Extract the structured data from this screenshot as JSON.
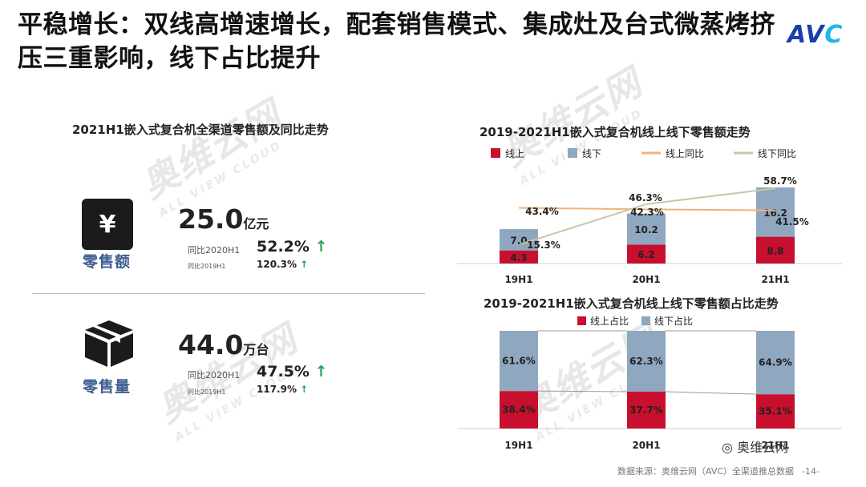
{
  "title": "平稳增长：双线高增速增长，配套销售模式、集成灶及台式微蒸烤挤压三重影响，线下占比提升",
  "brand_logo": "AVC",
  "watermark": {
    "text": "奥维云网",
    "sub": "ALL VIEW CLOUD"
  },
  "left_panel": {
    "title": "2021H1嵌入式复合机全渠道零售额及同比走势",
    "retail_amount": {
      "icon": "yen-bag-icon",
      "icon_glyph": "¥",
      "label": "零售额",
      "value": "25.0",
      "unit": "亿元",
      "yoy_2020_label": "同比2020H1",
      "yoy_2020_value": "52.2%",
      "yoy_2019_label": "同比2019H1",
      "yoy_2019_value": "120.3%"
    },
    "retail_volume": {
      "icon": "box-icon",
      "label": "零售量",
      "value": "44.0",
      "unit": "万台",
      "yoy_2020_label": "同比2020H1",
      "yoy_2020_value": "47.5%",
      "yoy_2019_label": "同比2019H1",
      "yoy_2019_value": "117.9%"
    },
    "up_arrow": "↑"
  },
  "footer": {
    "source": "数据来源：奥维云网（AVC）全渠道推总数据",
    "page": "-14-"
  },
  "wechat_tag": "奥维云网",
  "colors": {
    "online": "#c8102e",
    "offline": "#8fa7bf",
    "online_yoy": "#f2b27a",
    "offline_yoy": "#c9c6a6",
    "up": "#29a35a"
  },
  "chart_data": [
    {
      "type": "bar",
      "stacked": true,
      "title": "2019-2021H1嵌入式复合机线上线下零售额走势",
      "categories": [
        "19H1",
        "20H1",
        "21H1"
      ],
      "series": [
        {
          "name": "线上",
          "values": [
            4.3,
            6.2,
            8.8
          ],
          "labels": [
            "4.3",
            "6.2",
            "8.8"
          ],
          "color": "#c8102e"
        },
        {
          "name": "线下",
          "values": [
            7.0,
            10.2,
            16.2
          ],
          "labels": [
            "7.0",
            "10.2",
            "16.2"
          ],
          "color": "#8fa7bf"
        }
      ],
      "lines": [
        {
          "name": "线上同比",
          "values": [
            43.4,
            42.3,
            41.5
          ],
          "labels": [
            "43.4%",
            "42.3%",
            "41.5%"
          ],
          "color": "#f2b27a"
        },
        {
          "name": "线下同比",
          "values": [
            15.3,
            46.3,
            58.7
          ],
          "labels": [
            "15.3%",
            "46.3%",
            "58.7%"
          ],
          "color": "#c9c6a6"
        }
      ],
      "legend": "top"
    },
    {
      "type": "bar",
      "stacked": true,
      "percent": true,
      "title": "2019-2021H1嵌入式复合机线上线下零售额占比走势",
      "categories": [
        "19H1",
        "20H1",
        "21H1"
      ],
      "series": [
        {
          "name": "线上占比",
          "values": [
            38.4,
            37.7,
            35.1
          ],
          "labels": [
            "38.4%",
            "37.7%",
            "35.1%"
          ],
          "color": "#c8102e"
        },
        {
          "name": "线下占比",
          "values": [
            61.6,
            62.3,
            64.9
          ],
          "labels": [
            "61.6%",
            "62.3%",
            "64.9%"
          ],
          "color": "#8fa7bf"
        }
      ],
      "legend": "top"
    }
  ]
}
